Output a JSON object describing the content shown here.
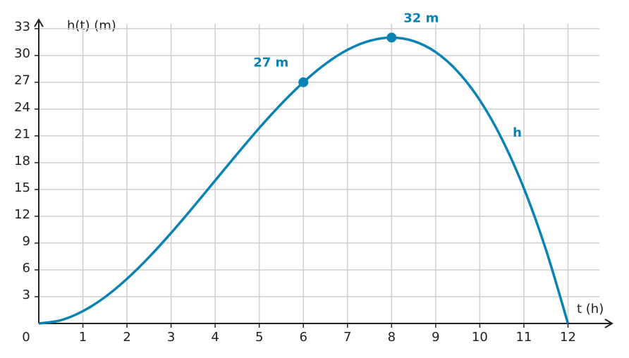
{
  "chart_data": {
    "type": "line",
    "x_label": "t (h)",
    "y_label": "h(t) (m)",
    "x": [
      0,
      0.5,
      1,
      1.5,
      2,
      2.5,
      3,
      3.5,
      4,
      4.5,
      5,
      5.5,
      6,
      6.5,
      7,
      7.5,
      8,
      8.5,
      9,
      9.5,
      10,
      10.5,
      11,
      11.5,
      12
    ],
    "series": [
      {
        "name": "h",
        "color": "#0a83b3",
        "values": [
          0,
          0.36,
          1.38,
          2.95,
          5,
          7.42,
          10.13,
          13.02,
          16,
          18.98,
          21.88,
          24.58,
          27,
          29.05,
          30.63,
          31.64,
          32,
          31.61,
          30.38,
          28.2,
          25,
          20.67,
          15.13,
          8.27,
          0
        ]
      }
    ],
    "points": {
      "x": [
        6,
        8
      ],
      "values": [
        27,
        32
      ],
      "value_labels": [
        "27 m",
        "32 m"
      ]
    },
    "xlim": [
      0,
      13
    ],
    "ylim": [
      0,
      34
    ],
    "xticks": [
      0,
      1,
      2,
      3,
      4,
      5,
      6,
      7,
      8,
      9,
      10,
      11,
      12
    ],
    "yticks": [
      3,
      6,
      9,
      12,
      15,
      18,
      21,
      24,
      27,
      30,
      33
    ],
    "grid": true
  }
}
